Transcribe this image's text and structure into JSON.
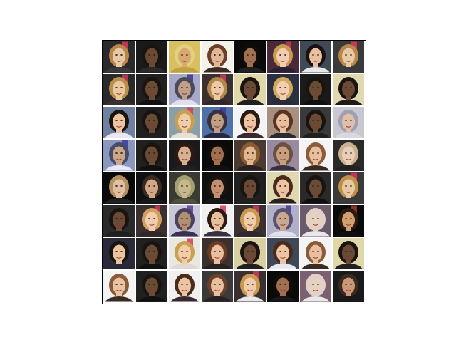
{
  "figure": {
    "rows": 8,
    "cols": 8,
    "tiles": [
      {
        "bg": "#2a2a2a",
        "skin": "#e8c9a6",
        "hair": "#b8864a",
        "shirt": "#3a3a3a",
        "accent": "#d83a5a"
      },
      {
        "bg": "#1a1a1a",
        "skin": "#6a4a34",
        "hair": "#1a1410",
        "shirt": "#2a2a2a",
        "accent": ""
      },
      {
        "bg": "#d8c060",
        "skin": "#d8a870",
        "hair": "#e0d080",
        "shirt": "#c0a040",
        "accent": ""
      },
      {
        "bg": "#f4f0ea",
        "skin": "#e0b898",
        "hair": "#6a4028",
        "shirt": "#3a2a20",
        "accent": ""
      },
      {
        "bg": "#0a0a0a",
        "skin": "#a07050",
        "hair": "#100c0a",
        "shirt": "#202020",
        "accent": ""
      },
      {
        "bg": "#4a2a3a",
        "skin": "#f0cdb0",
        "hair": "#c89a50",
        "shirt": "#2a2030",
        "accent": "#c83858"
      },
      {
        "bg": "#404a54",
        "skin": "#e8c0a0",
        "hair": "#1a1210",
        "shirt": "#e8e8e8",
        "accent": ""
      },
      {
        "bg": "#3a3a3a",
        "skin": "#e8c9a6",
        "hair": "#b8864a",
        "shirt": "#3a3a3a",
        "accent": "#d83a5a"
      },
      {
        "bg": "#2a2a2a",
        "skin": "#eac8a0",
        "hair": "#b8904a",
        "shirt": "#3a3030",
        "accent": "#c83a5a"
      },
      {
        "bg": "#202020",
        "skin": "#6a4c36",
        "hair": "#1a1410",
        "shirt": "#101010",
        "accent": ""
      },
      {
        "bg": "#a8a8c8",
        "skin": "#c0a088",
        "hair": "#4a4a5a",
        "shirt": "#e0e0f0",
        "accent": "#3a3a8a"
      },
      {
        "bg": "#3a3030",
        "skin": "#ecc8a4",
        "hair": "#b08848",
        "shirt": "#302828",
        "accent": "#d03a5a"
      },
      {
        "bg": "#e0d8a8",
        "skin": "#6a4a34",
        "hair": "#1a1410",
        "shirt": "#202020",
        "accent": ""
      },
      {
        "bg": "#2a3040",
        "skin": "#f0d0b0",
        "hair": "#d0a860",
        "shirt": "#2a2a3a",
        "accent": ""
      },
      {
        "bg": "#1a1a1a",
        "skin": "#6a4c36",
        "hair": "#1a1410",
        "shirt": "#101010",
        "accent": ""
      },
      {
        "bg": "#e0d8b0",
        "skin": "#6a4a34",
        "hair": "#1a1410",
        "shirt": "#201a18",
        "accent": ""
      },
      {
        "bg": "#7080a0",
        "skin": "#ecc4a0",
        "hair": "#1a1410",
        "shirt": "#e8e8f0",
        "accent": ""
      },
      {
        "bg": "#202020",
        "skin": "#6a4c36",
        "hair": "#1a1410",
        "shirt": "#202020",
        "accent": ""
      },
      {
        "bg": "#8aa0a8",
        "skin": "#f0cca8",
        "hair": "#c8a050",
        "shirt": "#e8e0d0",
        "accent": "#d83a5a"
      },
      {
        "bg": "#5070a8",
        "skin": "#c0a080",
        "hair": "#3a3040",
        "shirt": "#282840",
        "accent": "#3a3a9a"
      },
      {
        "bg": "#f4f4f4",
        "skin": "#ecc4a4",
        "hair": "#2a1a12",
        "shirt": "#3a2a30",
        "accent": ""
      },
      {
        "bg": "#a89080",
        "skin": "#e8c0a0",
        "hair": "#5a3422",
        "shirt": "#2a2830",
        "accent": ""
      },
      {
        "bg": "#3a3a3a",
        "skin": "#6a4a34",
        "hair": "#1a1410",
        "shirt": "#202020",
        "accent": ""
      },
      {
        "bg": "#c8c8d0",
        "skin": "#e0c0a8",
        "hair": "#a0a0b0",
        "shirt": "#d8d8e0",
        "accent": ""
      },
      {
        "bg": "#8a98c0",
        "skin": "#c8a888",
        "hair": "#4a4a6a",
        "shirt": "#e8e8f8",
        "accent": "#3a3aa0"
      },
      {
        "bg": "#202020",
        "skin": "#6a4c36",
        "hair": "#1a1410",
        "shirt": "#101010",
        "accent": ""
      },
      {
        "bg": "#1a1a1a",
        "skin": "#d8b090",
        "hair": "#2a1a12",
        "shirt": "#202020",
        "accent": ""
      },
      {
        "bg": "#0a0a0a",
        "skin": "#a07050",
        "hair": "#100c0a",
        "shirt": "#101010",
        "accent": ""
      },
      {
        "bg": "#4a3a30",
        "skin": "#e0b890",
        "hair": "#8a5a30",
        "shirt": "#2a2020",
        "accent": ""
      },
      {
        "bg": "#9a8aa0",
        "skin": "#c8a080",
        "hair": "#6a5040",
        "shirt": "#3a3040",
        "accent": ""
      },
      {
        "bg": "#f4f4f4",
        "skin": "#e8c0a0",
        "hair": "#8a5a3a",
        "shirt": "#3a2a20",
        "accent": ""
      },
      {
        "bg": "#2a2a2a",
        "skin": "#e8d0b8",
        "hair": "#c8b090",
        "shirt": "#202020",
        "accent": ""
      },
      {
        "bg": "#0a0a0a",
        "skin": "#e0c0a0",
        "hair": "#b09060",
        "shirt": "#202020",
        "accent": ""
      },
      {
        "bg": "#101010",
        "skin": "#d0a888",
        "hair": "#3a2a20",
        "shirt": "#181818",
        "accent": ""
      },
      {
        "bg": "#3a3a30",
        "skin": "#c8b890",
        "hair": "#a0a070",
        "shirt": "#505040",
        "accent": ""
      },
      {
        "bg": "#101010",
        "skin": "#c09070",
        "hair": "#1a1410",
        "shirt": "#181818",
        "accent": ""
      },
      {
        "bg": "#202020",
        "skin": "#6a4a34",
        "hair": "#1a1410",
        "shirt": "#202020",
        "accent": ""
      },
      {
        "bg": "#e0d8b0",
        "skin": "#ecc4a4",
        "hair": "#4a2a1a",
        "shirt": "#2a2020",
        "accent": ""
      },
      {
        "bg": "#2a2a2a",
        "skin": "#6a4c36",
        "hair": "#1a1410",
        "shirt": "#101010",
        "accent": ""
      },
      {
        "bg": "#3a3a3a",
        "skin": "#e8c9a6",
        "hair": "#c0904a",
        "shirt": "#3a3a3a",
        "accent": "#d83a5a"
      },
      {
        "bg": "#2a2a2a",
        "skin": "#6a4a34",
        "hair": "#1a1410",
        "shirt": "#202020",
        "accent": ""
      },
      {
        "bg": "#3a3030",
        "skin": "#f0ccb0",
        "hair": "#d0a060",
        "shirt": "#302828",
        "accent": "#d03a5a"
      },
      {
        "bg": "#c8c8d8",
        "skin": "#b09070",
        "hair": "#4a4060",
        "shirt": "#3a3050",
        "accent": "#5a3aa0"
      },
      {
        "bg": "#f0f0f0",
        "skin": "#e8c0a0",
        "hair": "#2a1a12",
        "shirt": "#3a3040",
        "accent": "#d83a5a"
      },
      {
        "bg": "#3a3030",
        "skin": "#f0ccac",
        "hair": "#c89a50",
        "shirt": "#302828",
        "accent": "#d03a5a"
      },
      {
        "bg": "#b0b0c8",
        "skin": "#c8a890",
        "hair": "#5a5070",
        "shirt": "#e0e0f0",
        "accent": "#3a3a9a"
      },
      {
        "bg": "#6a5a6a",
        "skin": "#e8d0c0",
        "hair": "#e0d0c8",
        "shirt": "#e8e8e8",
        "accent": ""
      },
      {
        "bg": "#0a0a0a",
        "skin": "#d0a070",
        "hair": "#2a1a12",
        "shirt": "#101010",
        "accent": "#a03a2a"
      },
      {
        "bg": "#2a2a3a",
        "skin": "#ecc4a0",
        "hair": "#1a1410",
        "shirt": "#282838",
        "accent": ""
      },
      {
        "bg": "#202020",
        "skin": "#6a4c36",
        "hair": "#1a1410",
        "shirt": "#101010",
        "accent": ""
      },
      {
        "bg": "#e8e8e0",
        "skin": "#f0cca8",
        "hair": "#c8a050",
        "shirt": "#e0d8d0",
        "accent": "#d83a5a"
      },
      {
        "bg": "#3a3030",
        "skin": "#e8c0a0",
        "hair": "#6a3a22",
        "shirt": "#2a2020",
        "accent": ""
      },
      {
        "bg": "#d8d0a0",
        "skin": "#6a4a34",
        "hair": "#1a1410",
        "shirt": "#202020",
        "accent": ""
      },
      {
        "bg": "#404858",
        "skin": "#ecc4a4",
        "hair": "#4a2a1a",
        "shirt": "#e8e8f0",
        "accent": ""
      },
      {
        "bg": "#f4f4f4",
        "skin": "#e8c0a0",
        "hair": "#8a5a3a",
        "shirt": "#3a2a20",
        "accent": ""
      },
      {
        "bg": "#e0d8a8",
        "skin": "#6a4a34",
        "hair": "#1a1410",
        "shirt": "#202020",
        "accent": ""
      },
      {
        "bg": "#f4f4f4",
        "skin": "#e8c4a4",
        "hair": "#8a5a3a",
        "shirt": "#3a2a20",
        "accent": ""
      },
      {
        "bg": "#202020",
        "skin": "#6a4c36",
        "hair": "#1a1410",
        "shirt": "#101010",
        "accent": ""
      },
      {
        "bg": "#f0f0f0",
        "skin": "#ecc4a4",
        "hair": "#4a2a1a",
        "shirt": "#3a2a30",
        "accent": ""
      },
      {
        "bg": "#3a3a3a",
        "skin": "#e8c0a0",
        "hair": "#6a4028",
        "shirt": "#2a2020",
        "accent": ""
      },
      {
        "bg": "#3a3030",
        "skin": "#f0ccac",
        "hair": "#c89a50",
        "shirt": "#e8e8e8",
        "accent": "#d03a5a"
      },
      {
        "bg": "#0a0a0a",
        "skin": "#a07050",
        "hair": "#100c0a",
        "shirt": "#181818",
        "accent": ""
      },
      {
        "bg": "#7a6070",
        "skin": "#e8d0c0",
        "hair": "#e0d0c8",
        "shirt": "#e8e8e8",
        "accent": ""
      },
      {
        "bg": "#1a1a1a",
        "skin": "#c89878",
        "hair": "#3a2a20",
        "shirt": "#181818",
        "accent": ""
      }
    ]
  }
}
